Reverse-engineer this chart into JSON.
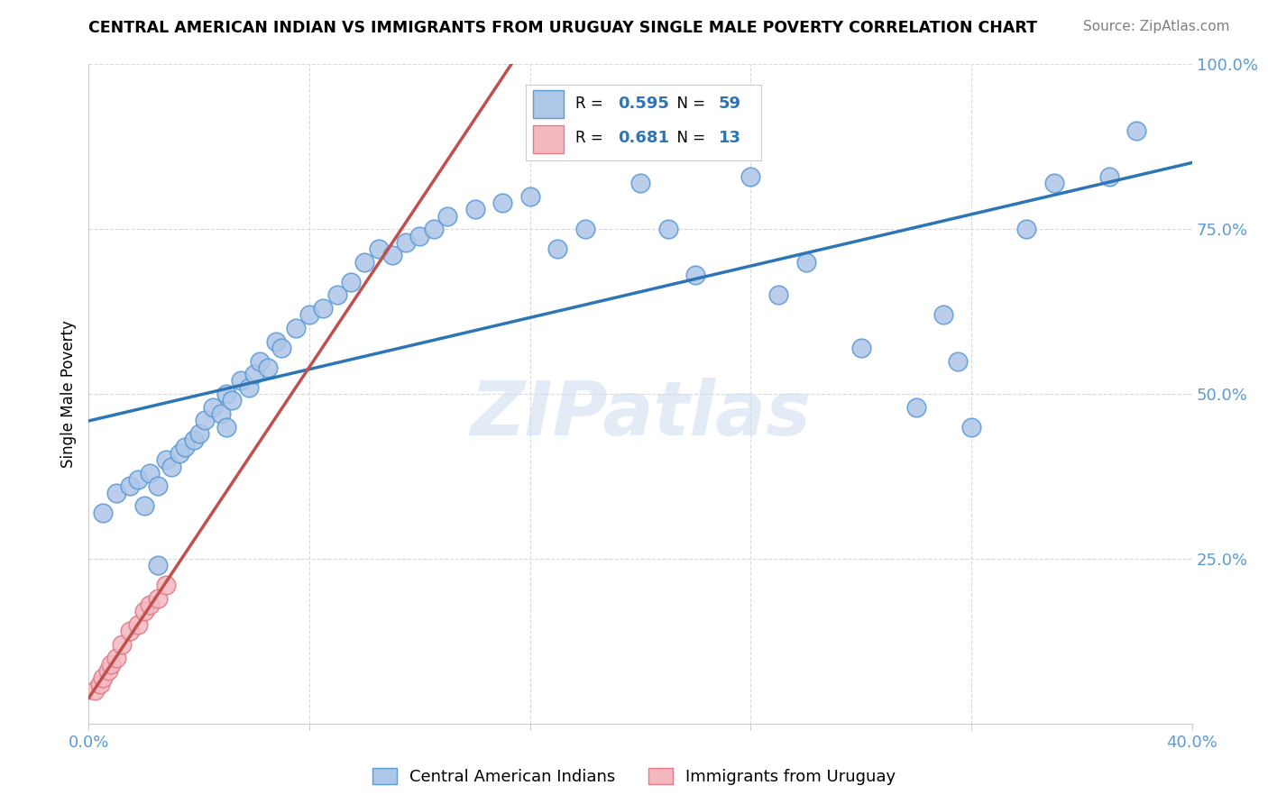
{
  "title": "CENTRAL AMERICAN INDIAN VS IMMIGRANTS FROM URUGUAY SINGLE MALE POVERTY CORRELATION CHART",
  "source": "Source: ZipAtlas.com",
  "ylabel": "Single Male Poverty",
  "xlim": [
    0.0,
    0.4
  ],
  "ylim": [
    0.0,
    1.0
  ],
  "blue_R": 0.595,
  "blue_N": 59,
  "pink_R": 0.681,
  "pink_N": 13,
  "blue_color": "#aec6e8",
  "blue_edge_color": "#5b9bd5",
  "pink_color": "#f4b8c1",
  "pink_edge_color": "#e07b8a",
  "blue_line_color": "#2e75b6",
  "pink_line_color": "#c0504d",
  "pink_dash_color": "#e07b8a",
  "grid_color": "#d9d9d9",
  "blue_x": [
    0.005,
    0.01,
    0.015,
    0.018,
    0.02,
    0.022,
    0.025,
    0.028,
    0.03,
    0.033,
    0.035,
    0.038,
    0.04,
    0.042,
    0.045,
    0.048,
    0.05,
    0.052,
    0.055,
    0.058,
    0.06,
    0.062,
    0.065,
    0.068,
    0.07,
    0.075,
    0.08,
    0.085,
    0.09,
    0.095,
    0.1,
    0.105,
    0.11,
    0.115,
    0.12,
    0.125,
    0.13,
    0.14,
    0.15,
    0.16,
    0.17,
    0.18,
    0.2,
    0.21,
    0.22,
    0.24,
    0.25,
    0.26,
    0.28,
    0.3,
    0.31,
    0.315,
    0.32,
    0.34,
    0.35,
    0.37,
    0.38,
    0.025,
    0.05
  ],
  "blue_y": [
    0.32,
    0.35,
    0.36,
    0.37,
    0.33,
    0.38,
    0.36,
    0.4,
    0.39,
    0.41,
    0.42,
    0.43,
    0.44,
    0.46,
    0.48,
    0.47,
    0.5,
    0.49,
    0.52,
    0.51,
    0.53,
    0.55,
    0.54,
    0.58,
    0.57,
    0.6,
    0.62,
    0.63,
    0.65,
    0.67,
    0.7,
    0.72,
    0.71,
    0.73,
    0.74,
    0.75,
    0.77,
    0.78,
    0.79,
    0.8,
    0.72,
    0.75,
    0.82,
    0.75,
    0.68,
    0.83,
    0.65,
    0.7,
    0.57,
    0.48,
    0.62,
    0.55,
    0.45,
    0.75,
    0.82,
    0.83,
    0.9,
    0.24,
    0.45
  ],
  "pink_x": [
    0.002,
    0.004,
    0.005,
    0.007,
    0.008,
    0.01,
    0.012,
    0.015,
    0.018,
    0.02,
    0.022,
    0.025,
    0.028
  ],
  "pink_y": [
    0.05,
    0.06,
    0.07,
    0.08,
    0.09,
    0.1,
    0.12,
    0.14,
    0.15,
    0.17,
    0.18,
    0.19,
    0.21
  ]
}
